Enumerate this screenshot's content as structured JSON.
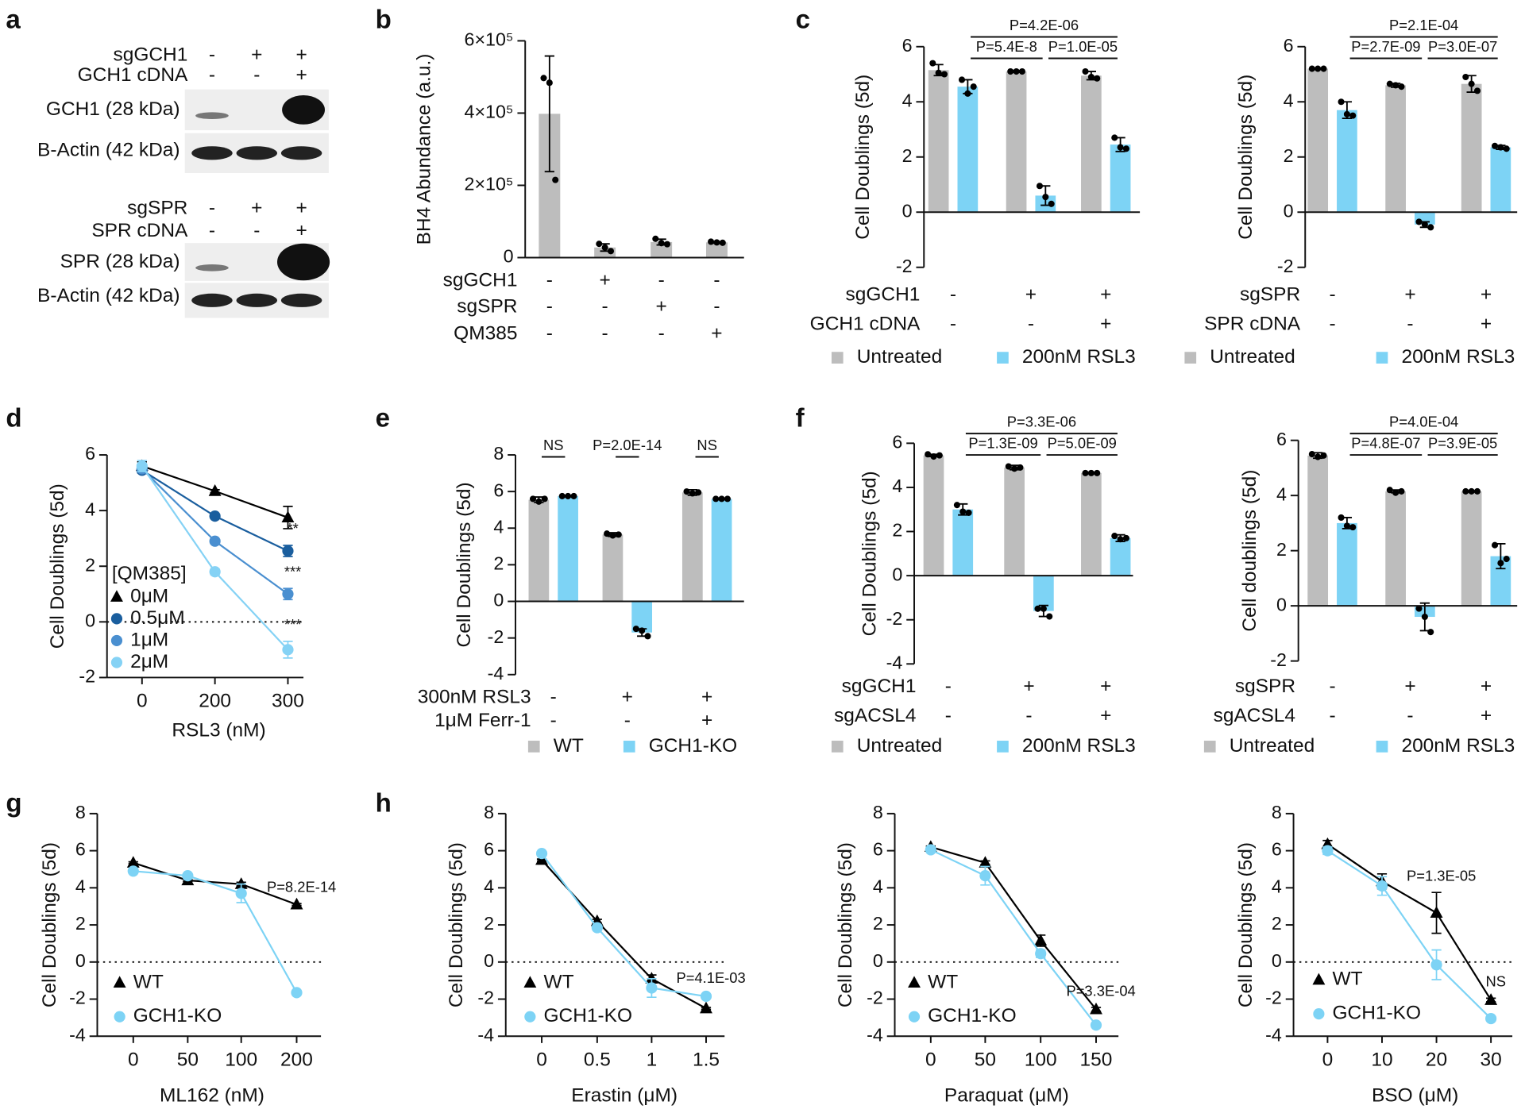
{
  "chart_data": [
    {
      "type": "blot",
      "panel": "a",
      "blots": [
        {
          "conditions": [
            {
              "name": "sgGCH1",
              "signs": [
                "-",
                "+",
                "+"
              ]
            },
            {
              "name": "GCH1 cDNA",
              "signs": [
                "-",
                "-",
                "+"
              ]
            }
          ],
          "bands": [
            "GCH1 (28 kDa)",
            "B-Actin (42 kDa)"
          ]
        },
        {
          "conditions": [
            {
              "name": "sgSPR",
              "signs": [
                "-",
                "+",
                "+"
              ]
            },
            {
              "name": "SPR cDNA",
              "signs": [
                "-",
                "-",
                "+"
              ]
            }
          ],
          "bands": [
            "SPR (28 kDa)",
            "B-Actin (42 kDa)"
          ]
        }
      ]
    },
    {
      "type": "bar",
      "panel": "b",
      "ylabel": "BH4 Abundance (a.u.)",
      "ylim": [
        0,
        600000
      ],
      "yticks": [
        0,
        {
          "value": 200000,
          "label": "2×10⁵"
        },
        {
          "value": 400000,
          "label": "4×10⁵"
        },
        {
          "value": 600000,
          "label": "6×10⁵"
        }
      ],
      "color": "#bdbdbd",
      "values": [
        398000,
        28000,
        43000,
        42000
      ],
      "errors": [
        160000,
        10000,
        8000,
        2000
      ],
      "points": [
        [
          497000,
          484000,
          215000
        ],
        [
          38000,
          28000,
          18000
        ],
        [
          52000,
          40000,
          37000
        ],
        [
          44000,
          42000,
          41000
        ]
      ],
      "conditions": [
        {
          "name": "sgGCH1",
          "signs": [
            "-",
            "+",
            "-",
            "-"
          ]
        },
        {
          "name": "sgSPR",
          "signs": [
            "-",
            "-",
            "+",
            "-"
          ]
        },
        {
          "name": "QM385",
          "signs": [
            "-",
            "-",
            "-",
            "+"
          ]
        }
      ]
    },
    {
      "type": "bar",
      "panel": "c",
      "ylabel": "Cell Doublings (5d)",
      "ylim": [
        -2,
        6
      ],
      "yticks": [
        -2,
        0,
        2,
        4,
        6
      ],
      "series": [
        {
          "name": "Untreated",
          "color": "#bdbdbd",
          "values": [
            5.15,
            5.1,
            4.95
          ],
          "errors": [
            0.2,
            0.03,
            0.15
          ],
          "points": [
            [
              5.4,
              5.05,
              5.0
            ],
            [
              5.1,
              5.1,
              5.1
            ],
            [
              5.1,
              4.9,
              4.85
            ]
          ]
        },
        {
          "name": "200nM RSL3",
          "color": "#7dd3f5",
          "values": [
            4.55,
            0.6,
            2.45
          ],
          "errors": [
            0.25,
            0.35,
            0.25
          ],
          "points": [
            [
              4.8,
              4.3,
              4.55
            ],
            [
              0.95,
              0.55,
              0.3
            ],
            [
              2.7,
              2.35,
              2.3
            ]
          ]
        }
      ],
      "conditions": [
        {
          "name": "sgGCH1",
          "signs": [
            "-",
            "+",
            "+"
          ]
        },
        {
          "name": "GCH1 cDNA",
          "signs": [
            "-",
            "-",
            "+"
          ]
        }
      ],
      "brackets": [
        {
          "text": "P=4.2E-06",
          "from": [
            1,
            0
          ],
          "to": [
            1,
            2
          ]
        },
        {
          "text": "P=5.4E-8",
          "from": [
            1,
            0
          ],
          "to": [
            1,
            1
          ]
        },
        {
          "text": "P=1.0E-05",
          "from": [
            1,
            1
          ],
          "to": [
            1,
            2
          ]
        }
      ]
    },
    {
      "type": "bar",
      "ylabel": "Cell Doublings (5d)",
      "ylim": [
        -2,
        6
      ],
      "yticks": [
        -2,
        0,
        2,
        4,
        6
      ],
      "series": [
        {
          "name": "Untreated",
          "color": "#bdbdbd",
          "values": [
            5.2,
            4.6,
            4.65
          ],
          "errors": [
            0.03,
            0.07,
            0.3
          ],
          "points": [
            [
              5.2,
              5.2,
              5.2
            ],
            [
              4.65,
              4.6,
              4.55
            ],
            [
              4.9,
              4.65,
              4.4
            ]
          ]
        },
        {
          "name": "200nM RSL3",
          "color": "#7dd3f5",
          "values": [
            3.7,
            -0.45,
            2.35
          ],
          "errors": [
            0.3,
            0.1,
            0.07
          ],
          "points": [
            [
              4.0,
              3.55,
              3.5
            ],
            [
              -0.35,
              -0.45,
              -0.55
            ],
            [
              2.4,
              2.35,
              2.3
            ]
          ]
        }
      ],
      "conditions": [
        {
          "name": "sgSPR",
          "signs": [
            "-",
            "+",
            "+"
          ]
        },
        {
          "name": "SPR cDNA",
          "signs": [
            "-",
            "-",
            "+"
          ]
        }
      ],
      "brackets": [
        {
          "text": "P=2.1E-04",
          "from": [
            1,
            0
          ],
          "to": [
            1,
            2
          ]
        },
        {
          "text": "P=2.7E-09",
          "from": [
            1,
            0
          ],
          "to": [
            1,
            1
          ]
        },
        {
          "text": "P=3.0E-07",
          "from": [
            1,
            1
          ],
          "to": [
            1,
            2
          ]
        }
      ]
    },
    {
      "type": "line",
      "panel": "d",
      "ylabel": "Cell Doublings (5d)",
      "xlabel": "RSL3 (nM)",
      "categories": [
        "0",
        "200",
        "300"
      ],
      "ylim": [
        -2,
        6
      ],
      "yticks": [
        -2,
        0,
        2,
        4,
        6
      ],
      "zero_line": true,
      "legend_title": "[QM385]",
      "series": [
        {
          "name": "0μM",
          "color": "#000000",
          "marker": "triangle",
          "values": [
            5.6,
            4.7,
            3.75
          ],
          "errors": [
            0.15,
            0.05,
            0.4
          ]
        },
        {
          "name": "0.5μM",
          "color": "#1a5e9e",
          "marker": "circle",
          "values": [
            5.45,
            3.8,
            2.55
          ],
          "errors": [
            0.1,
            0.05,
            0.2
          ]
        },
        {
          "name": "1μM",
          "color": "#4a8fd0",
          "marker": "circle",
          "values": [
            5.5,
            2.9,
            1.0
          ],
          "errors": [
            0.1,
            0.05,
            0.2
          ]
        },
        {
          "name": "2μM",
          "color": "#85d2f5",
          "marker": "circle",
          "values": [
            5.6,
            1.8,
            -1.0
          ],
          "errors": [
            0.2,
            0.1,
            0.3
          ]
        }
      ],
      "annotations": [
        {
          "text": "**",
          "series": 1,
          "index": 2
        },
        {
          "text": "***",
          "series": 2,
          "index": 2
        },
        {
          "text": "***",
          "series": 3,
          "index": 2
        }
      ]
    },
    {
      "type": "bar",
      "panel": "e",
      "ylabel": "Cell Doublings (5d)",
      "ylim": [
        -4,
        8
      ],
      "yticks": [
        -4,
        -2,
        0,
        2,
        4,
        6,
        8
      ],
      "series": [
        {
          "name": "WT",
          "color": "#bdbdbd",
          "values": [
            5.55,
            3.65,
            5.95
          ],
          "errors": [
            0.15,
            0.1,
            0.15
          ],
          "points": [
            [
              5.6,
              5.45,
              5.6
            ],
            [
              3.7,
              3.6,
              3.65
            ],
            [
              6.0,
              5.9,
              5.95
            ]
          ]
        },
        {
          "name": "GCH1-KO",
          "color": "#7dd3f5",
          "values": [
            5.75,
            -1.7,
            5.6
          ],
          "errors": [
            0.03,
            0.2,
            0.02
          ],
          "points": [
            [
              5.75,
              5.75,
              5.75
            ],
            [
              -1.5,
              -1.6,
              -1.9
            ],
            [
              5.6,
              5.6,
              5.6
            ]
          ]
        }
      ],
      "conditions": [
        {
          "name": "300nM RSL3",
          "signs": [
            "-",
            "+",
            "+"
          ]
        },
        {
          "name": "1μM Ferr-1",
          "signs": [
            "-",
            "-",
            "+"
          ]
        }
      ],
      "brackets": [
        {
          "text": "NS",
          "from": [
            0,
            0
          ],
          "to": [
            1,
            0
          ]
        },
        {
          "text": "P=2.0E-14",
          "from": [
            0,
            1
          ],
          "to": [
            1,
            1
          ]
        },
        {
          "text": "NS",
          "from": [
            0,
            2
          ],
          "to": [
            1,
            2
          ]
        }
      ]
    },
    {
      "type": "bar",
      "panel": "f",
      "ylabel": "Cell Doublings (5d)",
      "ylim": [
        -4,
        6
      ],
      "yticks": [
        -4,
        -2,
        0,
        2,
        4,
        6
      ],
      "series": [
        {
          "name": "Untreated",
          "color": "#bdbdbd",
          "values": [
            5.45,
            4.9,
            4.65
          ],
          "errors": [
            0.05,
            0.1,
            0.02
          ],
          "points": [
            [
              5.5,
              5.4,
              5.45
            ],
            [
              4.95,
              4.85,
              4.9
            ],
            [
              4.65,
              4.65,
              4.65
            ]
          ]
        },
        {
          "name": "200nM RSL3",
          "color": "#7dd3f5",
          "values": [
            3.0,
            -1.6,
            1.7
          ],
          "errors": [
            0.25,
            0.25,
            0.15
          ],
          "points": [
            [
              3.2,
              2.9,
              2.85
            ],
            [
              -1.5,
              -1.5,
              -1.85
            ],
            [
              1.8,
              1.65,
              1.7
            ]
          ]
        }
      ],
      "conditions": [
        {
          "name": "sgGCH1",
          "signs": [
            "-",
            "+",
            "+"
          ]
        },
        {
          "name": "sgACSL4",
          "signs": [
            "-",
            "-",
            "+"
          ]
        }
      ],
      "brackets": [
        {
          "text": "P=3.3E-06",
          "from": [
            1,
            0
          ],
          "to": [
            1,
            2
          ]
        },
        {
          "text": "P=1.3E-09",
          "from": [
            1,
            0
          ],
          "to": [
            1,
            1
          ]
        },
        {
          "text": "P=5.0E-09",
          "from": [
            1,
            1
          ],
          "to": [
            1,
            2
          ]
        }
      ]
    },
    {
      "type": "bar",
      "ylabel": "Cell doublings (5d)",
      "ylim": [
        -2,
        6
      ],
      "yticks": [
        -2,
        0,
        2,
        4,
        6
      ],
      "series": [
        {
          "name": "Untreated",
          "color": "#bdbdbd",
          "values": [
            5.45,
            4.15,
            4.15
          ],
          "errors": [
            0.1,
            0.05,
            0.02
          ],
          "points": [
            [
              5.5,
              5.4,
              5.45
            ],
            [
              4.2,
              4.1,
              4.15
            ],
            [
              4.15,
              4.15,
              4.15
            ]
          ]
        },
        {
          "name": "200nM RSL3",
          "color": "#7dd3f5",
          "values": [
            3.0,
            -0.4,
            1.8
          ],
          "errors": [
            0.2,
            0.5,
            0.45
          ],
          "points": [
            [
              3.2,
              2.9,
              2.85
            ],
            [
              -0.1,
              -0.4,
              -0.95
            ],
            [
              2.2,
              1.55,
              1.7
            ]
          ]
        }
      ],
      "conditions": [
        {
          "name": "sgSPR",
          "signs": [
            "-",
            "+",
            "+"
          ]
        },
        {
          "name": "sgACSL4",
          "signs": [
            "-",
            "-",
            "+"
          ]
        }
      ],
      "brackets": [
        {
          "text": "P=4.0E-04",
          "from": [
            1,
            0
          ],
          "to": [
            1,
            2
          ]
        },
        {
          "text": "P=4.8E-07",
          "from": [
            1,
            0
          ],
          "to": [
            1,
            1
          ]
        },
        {
          "text": "P=3.9E-05",
          "from": [
            1,
            1
          ],
          "to": [
            1,
            2
          ]
        }
      ]
    },
    {
      "type": "line",
      "panel": "g",
      "ylabel": "Cell Doublings (5d)",
      "xlabel": "ML162 (nM)",
      "categories": [
        "0",
        "50",
        "100",
        "200"
      ],
      "ylim": [
        -4,
        8
      ],
      "yticks": [
        -4,
        -2,
        0,
        2,
        4,
        6,
        8
      ],
      "zero_line": true,
      "series": [
        {
          "name": "WT",
          "color": "#000000",
          "marker": "triangle",
          "values": [
            5.35,
            4.4,
            4.2,
            3.1
          ],
          "errors": [
            0.05,
            0.05,
            0.1,
            0.05
          ]
        },
        {
          "name": "GCH1-KO",
          "color": "#7dd3f5",
          "marker": "circle",
          "values": [
            4.9,
            4.65,
            3.7,
            -1.65
          ],
          "errors": [
            0.1,
            0.1,
            0.5,
            0.05
          ]
        }
      ],
      "annotations": [
        {
          "text": "P=8.2E-14",
          "index": 3
        }
      ]
    },
    {
      "type": "line",
      "panel": "h",
      "ylabel": "Cell Doublings (5d)",
      "xlabel": "Erastin (μM)",
      "categories": [
        "0",
        "0.5",
        "1",
        "1.5"
      ],
      "ylim": [
        -4,
        8
      ],
      "yticks": [
        -4,
        -2,
        0,
        2,
        4,
        6,
        8
      ],
      "zero_line": true,
      "series": [
        {
          "name": "WT",
          "color": "#000000",
          "marker": "triangle",
          "values": [
            5.5,
            2.2,
            -0.9,
            -2.5
          ],
          "errors": [
            0.05,
            0.1,
            0.2,
            0.05
          ]
        },
        {
          "name": "GCH1-KO",
          "color": "#7dd3f5",
          "marker": "circle",
          "values": [
            5.85,
            1.85,
            -1.4,
            -1.85
          ],
          "errors": [
            0.05,
            0.1,
            0.5,
            0.1
          ]
        }
      ],
      "annotations": [
        {
          "text": "P=4.1E-03",
          "index": 3
        }
      ]
    },
    {
      "type": "line",
      "ylabel": "Cell Doublings (5d)",
      "xlabel": "Paraquat (μM)",
      "categories": [
        "0",
        "50",
        "100",
        "150"
      ],
      "ylim": [
        -4,
        8
      ],
      "yticks": [
        -4,
        -2,
        0,
        2,
        4,
        6,
        8
      ],
      "zero_line": true,
      "series": [
        {
          "name": "WT",
          "color": "#000000",
          "marker": "triangle",
          "values": [
            6.2,
            5.35,
            1.15,
            -2.55
          ],
          "errors": [
            0.05,
            0.1,
            0.3,
            0.1
          ]
        },
        {
          "name": "GCH1-KO",
          "color": "#7dd3f5",
          "marker": "circle",
          "values": [
            6.05,
            4.65,
            0.45,
            -3.4
          ],
          "errors": [
            0.05,
            0.5,
            0.2,
            0.1
          ]
        }
      ],
      "annotations": [
        {
          "text": "P=3.3E-04",
          "index": 3
        }
      ]
    },
    {
      "type": "line",
      "ylabel": "Cell Doublings (5d)",
      "xlabel": "BSO (μM)",
      "categories": [
        "0",
        "10",
        "20",
        "30"
      ],
      "ylim": [
        -4,
        8
      ],
      "yticks": [
        -4,
        -2,
        0,
        2,
        4,
        6,
        8
      ],
      "zero_line": true,
      "series": [
        {
          "name": "WT",
          "color": "#000000",
          "marker": "triangle",
          "values": [
            6.35,
            4.35,
            2.65,
            -2.05
          ],
          "errors": [
            0.2,
            0.4,
            1.1,
            0.1
          ]
        },
        {
          "name": "GCH1-KO",
          "color": "#7dd3f5",
          "marker": "circle",
          "values": [
            6.0,
            4.1,
            -0.15,
            -3.05
          ],
          "errors": [
            0.2,
            0.5,
            0.8,
            0.05
          ]
        }
      ],
      "annotations": [
        {
          "text": "P=1.3E-05",
          "index": 2
        },
        {
          "text": "NS",
          "index": 3
        }
      ]
    }
  ]
}
